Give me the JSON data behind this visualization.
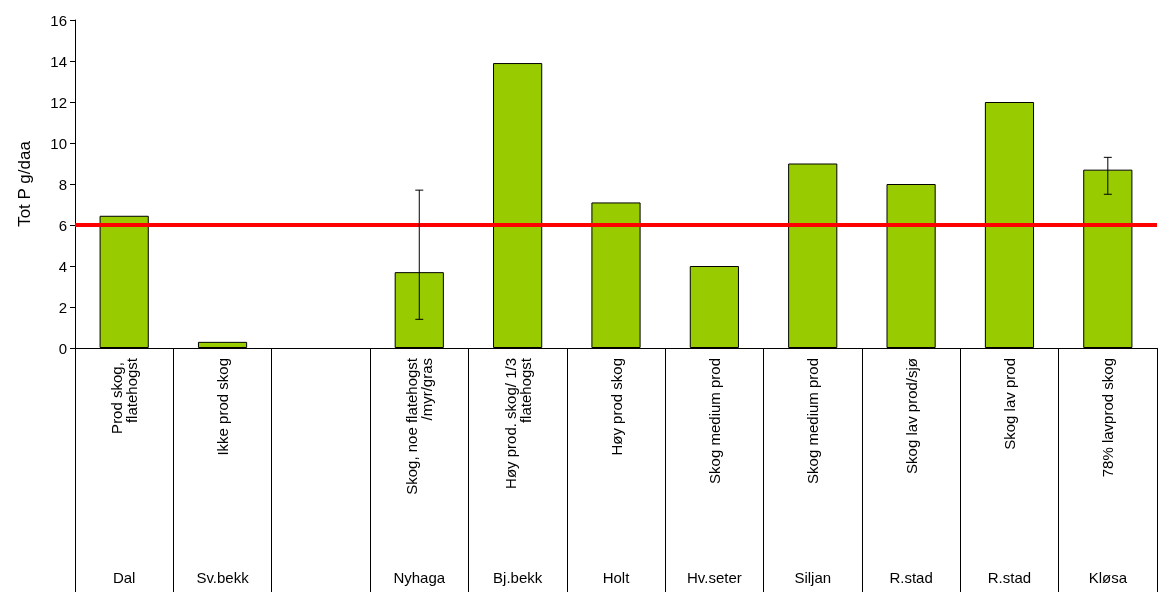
{
  "chart_data": {
    "type": "bar",
    "ylabel": "Tot P g/daa",
    "categories": [
      "Prod skog, flatehogst",
      "Ikke prod skog",
      null,
      "Skog, noe flatehogst/myr/gras",
      "Høy prod. skog/ 1/3 flatehogst",
      "Høy prod skog",
      "Skog medium prod",
      "Skog medium prod",
      "Skog lav prod/sjø",
      "Skog lav prod",
      "78% lavprod skog"
    ],
    "values": [
      6.45,
      0.3,
      null,
      3.7,
      13.9,
      7.1,
      4.0,
      9.0,
      8.0,
      12.0,
      8.7
    ],
    "errors": [
      null,
      null,
      null,
      [
        1.4,
        7.7
      ],
      null,
      null,
      null,
      null,
      null,
      null,
      [
        7.5,
        9.3
      ]
    ],
    "color": "#99cc00",
    "ylim": [
      0,
      16
    ],
    "yticks": [
      0,
      2,
      4,
      6,
      8,
      10,
      12,
      14,
      16
    ],
    "grid": false,
    "ref_lines": [
      {
        "axis": "y",
        "value": 6,
        "color": "#ff0000",
        "line_style": "solid"
      }
    ],
    "annotations": [
      "Dal",
      "Sv.bekk",
      "Nyhaga",
      "Bj.bekk",
      "Holt",
      "Hv.seter",
      "Siljan",
      "R.stad",
      "R.stad",
      "Kløsa"
    ]
  }
}
